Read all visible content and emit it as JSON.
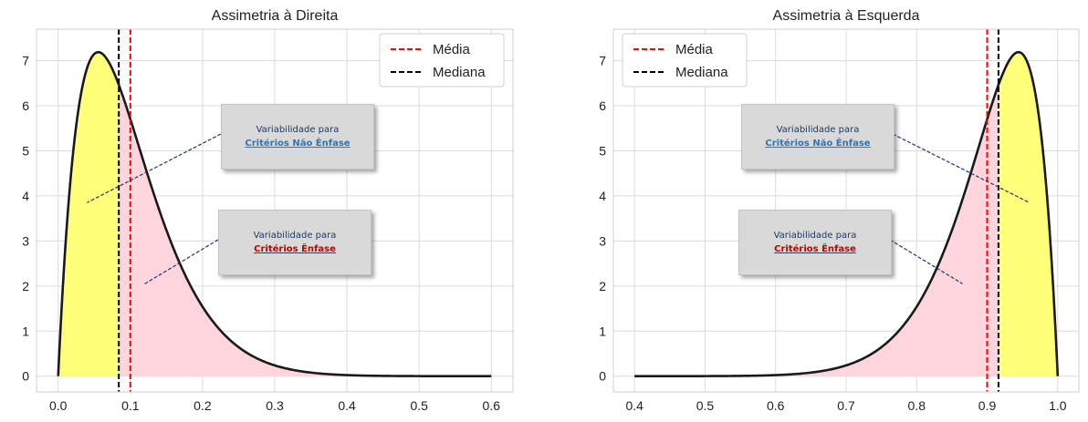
{
  "colors": {
    "curve": "#1a1a1a",
    "mean_line": "#ff0000",
    "median_line": "#000000",
    "fill_emphasis_region": "#ffff7a",
    "fill_non_emphasis_region": "#ffd6dd",
    "grid": "#dcdcdc",
    "callout_bg": "#d9d9d9",
    "callout_title": "#1f3864",
    "callout_non_emphasis": "#2e75b6",
    "callout_emphasis": "#c00000"
  },
  "chart_data": [
    {
      "type": "area",
      "title": "Assimetria à Direita",
      "distribution": "beta(2, 18)",
      "x_range": [
        0,
        0.6
      ],
      "xlim": [
        -0.03,
        0.63
      ],
      "ylim": [
        -0.35,
        7.7
      ],
      "xticks": [
        "0.0",
        "0.1",
        "0.2",
        "0.3",
        "0.4",
        "0.5",
        "0.6"
      ],
      "yticks": [
        "0",
        "1",
        "2",
        "3",
        "4",
        "5",
        "6",
        "7"
      ],
      "peak": {
        "x": 0.0556,
        "y": 7.35
      },
      "mean": 0.1,
      "median": 0.084,
      "legend": {
        "placement": "upper right",
        "entries": [
          "Média",
          "Mediana"
        ]
      },
      "callouts": [
        {
          "line1": "Variabilidade para",
          "line2": "Critérios Não Ênfase",
          "kind": "nonemph",
          "pointer_x": 0.04,
          "pointer_y": 3.85
        },
        {
          "line1": "Variabilidade para",
          "line2": "Critérios Ênfase",
          "kind": "emph",
          "pointer_x": 0.12,
          "pointer_y": 2.05
        }
      ]
    },
    {
      "type": "area",
      "title": "Assimetria à Esquerda",
      "distribution": "beta(18, 2)",
      "x_range": [
        0.4,
        1.0
      ],
      "xlim": [
        0.37,
        1.03
      ],
      "ylim": [
        -0.35,
        7.7
      ],
      "xticks": [
        "0.4",
        "0.5",
        "0.6",
        "0.7",
        "0.8",
        "0.9",
        "1.0"
      ],
      "yticks": [
        "0",
        "1",
        "2",
        "3",
        "4",
        "5",
        "6",
        "7"
      ],
      "peak": {
        "x": 0.9444,
        "y": 7.35
      },
      "mean": 0.9,
      "median": 0.916,
      "legend": {
        "placement": "upper left",
        "entries": [
          "Média",
          "Mediana"
        ]
      },
      "callouts": [
        {
          "line1": "Variabilidade para",
          "line2": "Critérios Não Ênfase",
          "kind": "nonemph",
          "pointer_x": 0.96,
          "pointer_y": 3.85
        },
        {
          "line1": "Variabilidade para",
          "line2": "Critérios Ênfase",
          "kind": "emph",
          "pointer_x": 0.865,
          "pointer_y": 2.05
        }
      ]
    }
  ]
}
